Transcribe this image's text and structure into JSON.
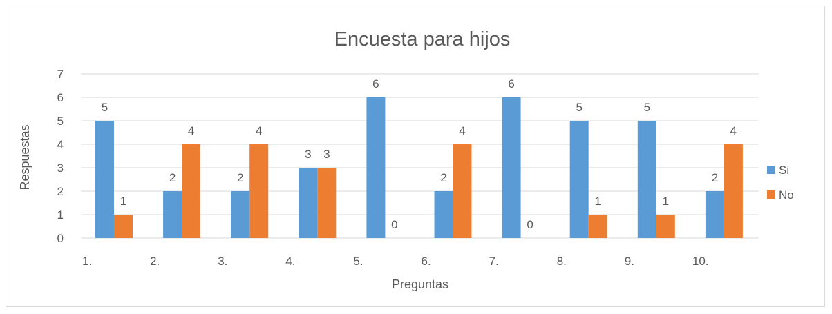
{
  "chart_data": {
    "type": "bar",
    "title": "Encuesta para hijos",
    "xlabel": "Preguntas",
    "ylabel": "Respuestas",
    "categories": [
      "1.",
      "2.",
      "3.",
      "4.",
      "5.",
      "6.",
      "7.",
      "8.",
      "9.",
      "10."
    ],
    "ylim": [
      0,
      7
    ],
    "yticks": [
      "0",
      "1",
      "2",
      "3",
      "4",
      "5",
      "6",
      "7"
    ],
    "grid": true,
    "legend": "right",
    "series": [
      {
        "name": "Si",
        "color": "#5b9bd5",
        "values": [
          5,
          2,
          2,
          3,
          6,
          2,
          6,
          5,
          5,
          2
        ]
      },
      {
        "name": "No",
        "color": "#ed7d31",
        "values": [
          1,
          4,
          4,
          3,
          0,
          4,
          0,
          1,
          1,
          4
        ]
      }
    ]
  }
}
